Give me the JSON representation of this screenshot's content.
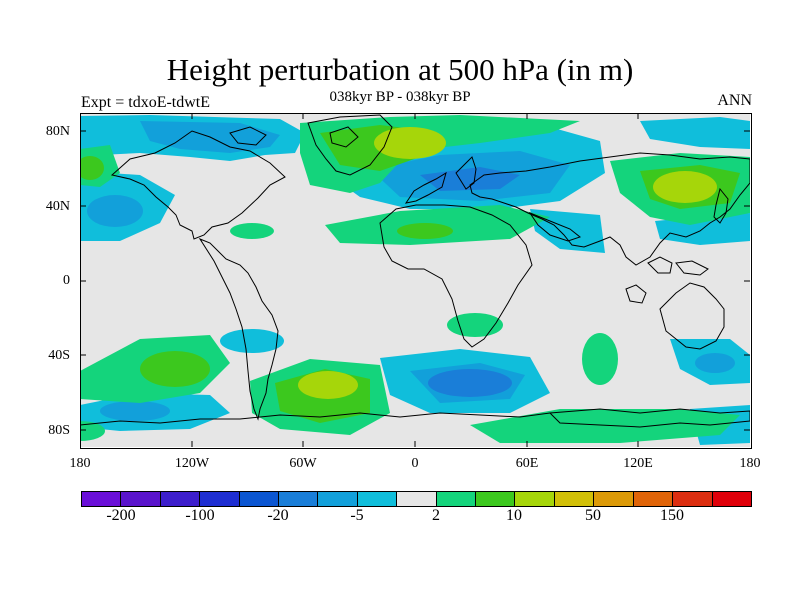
{
  "title": "Height perturbation at 500 hPa (in m)",
  "subtitle": "038kyr BP - 038kyr BP",
  "left_label": "Expt = tdxoE-tdwtE",
  "right_label": "ANN",
  "y_ticks": [
    "80N",
    "40N",
    "0",
    "40S",
    "80S"
  ],
  "x_ticks": [
    "180",
    "120W",
    "60W",
    "0",
    "60E",
    "120E",
    "180"
  ],
  "colorbar": {
    "colors": [
      "#6a0fd8",
      "#5a14cc",
      "#3d1ecc",
      "#1e2ed2",
      "#0b56d2",
      "#1a7ed8",
      "#12a0da",
      "#10bedb",
      "#e6e6e6",
      "#14d47c",
      "#3cc81e",
      "#a6d60a",
      "#d2c008",
      "#dc9a08",
      "#e06408",
      "#dc2e10",
      "#e0000a"
    ],
    "labels": [
      "-200",
      "-100",
      "-20",
      "-5",
      "2",
      "10",
      "50",
      "150"
    ]
  },
  "map_colors": {
    "neutral": "#e6e6e6",
    "pos_light": "#14d47c",
    "pos_mid": "#3cc81e",
    "pos_high": "#a6d60a",
    "neg_light": "#10bedb",
    "neg_mid": "#12a0da",
    "neg_high": "#1a7ed8",
    "coast": "#000000"
  }
}
